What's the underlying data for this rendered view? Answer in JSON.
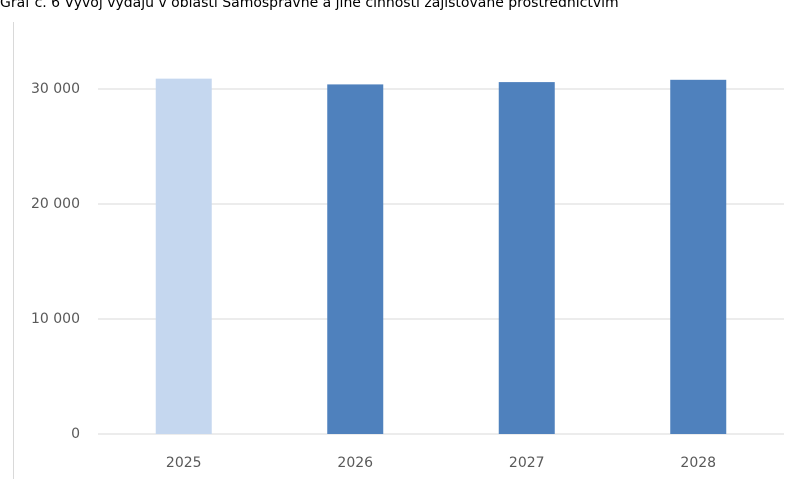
{
  "chart_data": {
    "type": "bar",
    "title": "Graf č. 6 Vývoj výdajů v oblasti Samosprávné a jiné činnosti zajišťované prostřednictvím",
    "categories": [
      "2025",
      "2026",
      "2027",
      "2028"
    ],
    "values": [
      30900,
      30400,
      30600,
      30800
    ],
    "colors": [
      "#c5d7ef",
      "#4f81bd",
      "#4f81bd",
      "#4f81bd"
    ],
    "ylim": [
      0,
      35000
    ],
    "yticks": [
      0,
      {
        "value": 10000,
        "label": "10 000"
      },
      {
        "value": 20000,
        "label": "20 000"
      },
      {
        "value": 30000,
        "label": "30 000"
      }
    ],
    "grid": true
  }
}
